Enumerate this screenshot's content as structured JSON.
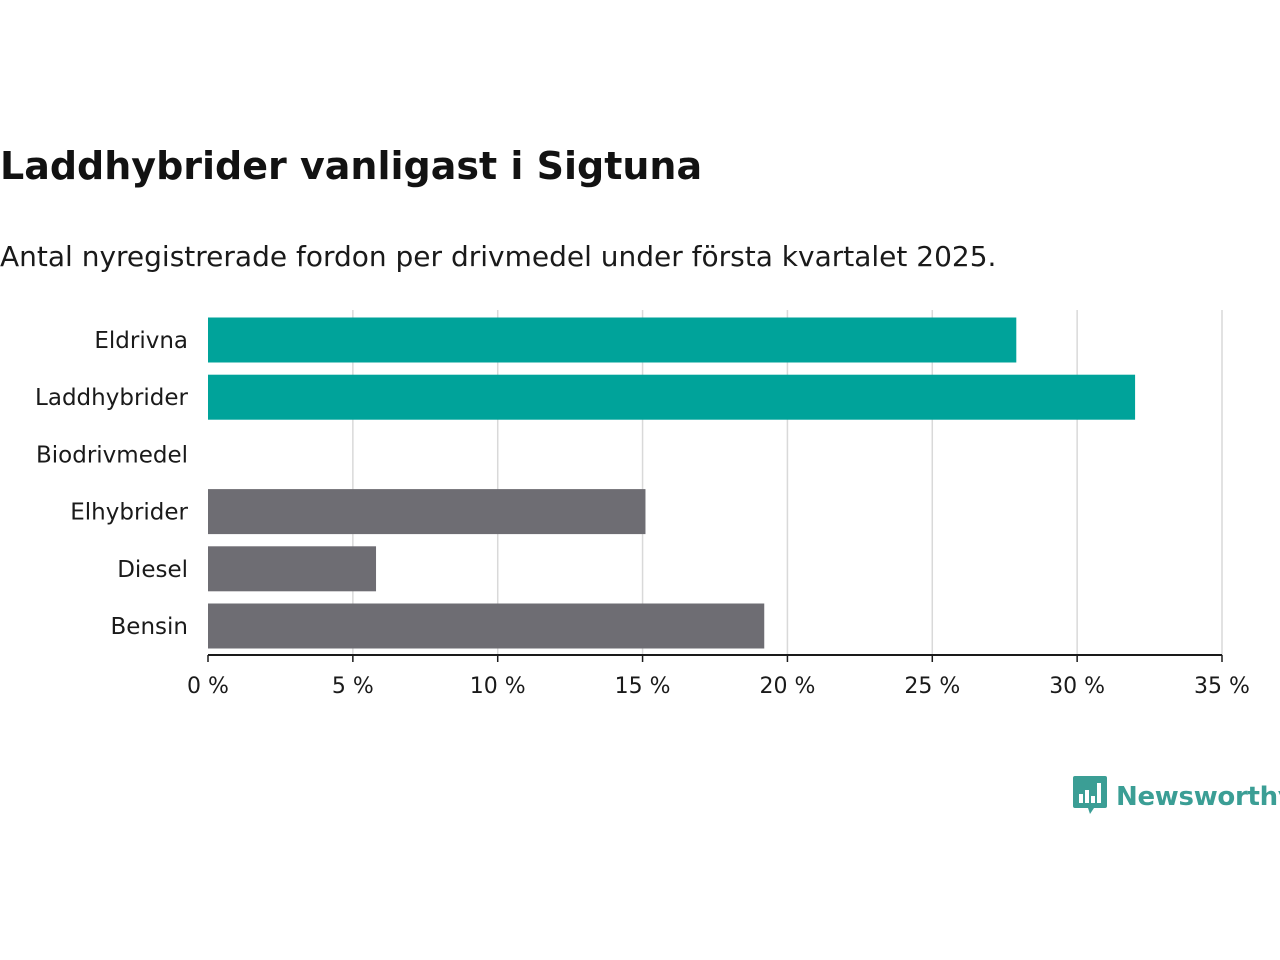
{
  "title": "Laddhybrider vanligast i Sigtuna",
  "subtitle": "Antal nyregistrerade fordon per drivmedel under första kvartalet 2025.",
  "brand": {
    "name": "Newsworthy",
    "color": "#3b9e95",
    "icon": "bar-chart-icon"
  },
  "colors": {
    "highlight": "#00a39a",
    "normal": "#6e6d73",
    "grid": "#d9d9d9",
    "axis": "#1a1a1a"
  },
  "chart_data": {
    "type": "bar",
    "orientation": "horizontal",
    "categories": [
      "Eldrivna",
      "Laddhybrider",
      "Biodrivmedel",
      "Elhybrider",
      "Diesel",
      "Bensin"
    ],
    "values": [
      27.9,
      32.0,
      0,
      15.1,
      5.8,
      19.2
    ],
    "highlight": [
      true,
      true,
      false,
      false,
      false,
      false
    ],
    "xticks": [
      "0 %",
      "5 %",
      "10 %",
      "15 %",
      "20 %",
      "25 %",
      "30 %",
      "35 %"
    ],
    "xlim": [
      0,
      35
    ],
    "unit": "%",
    "grid": true
  }
}
